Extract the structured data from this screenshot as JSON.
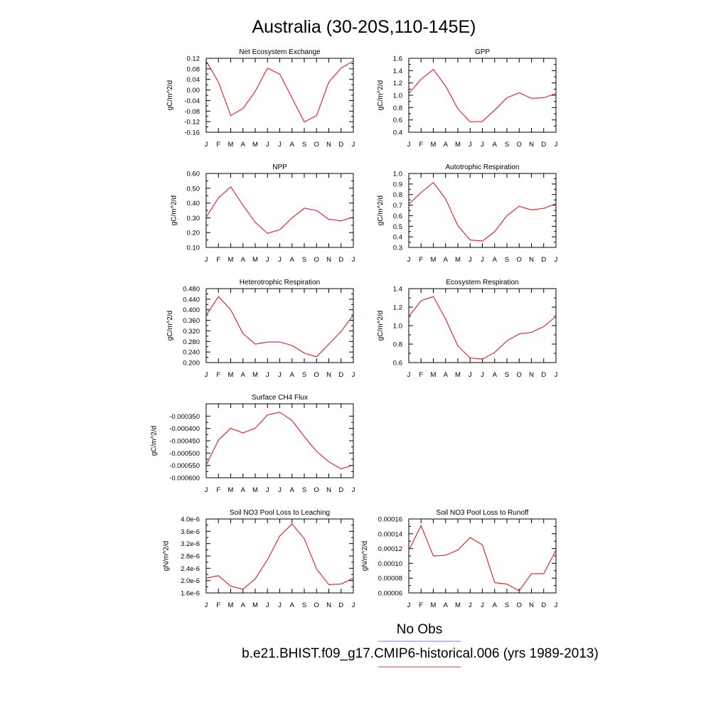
{
  "figure_title": "Australia (30-20S,110-145E)",
  "legend": {
    "entries": [
      {
        "label": "No Obs",
        "color": "#7b7bea"
      },
      {
        "label": "b.e21.BHIST.f09_g17.CMIP6-historical.006 (yrs 1989-2013)",
        "color": "#ef3b3b"
      }
    ]
  },
  "series_color": "#e8191e",
  "chart_data": [
    {
      "type": "line",
      "title": "Net Ecosystem Exchange",
      "ylabel": "gC/m^2/d",
      "categories": [
        "J",
        "F",
        "M",
        "A",
        "M",
        "J",
        "J",
        "A",
        "S",
        "O",
        "N",
        "D",
        "J"
      ],
      "ylim": [
        -0.16,
        0.12
      ],
      "yticks": [
        -0.16,
        -0.12,
        -0.08,
        -0.04,
        0.0,
        0.04,
        0.08,
        0.12
      ],
      "ytick_labels": [
        "-0.16",
        "-0.12",
        "-0.08",
        "-0.04",
        "0.00",
        "0.04",
        "0.08",
        "0.12"
      ],
      "values": [
        0.11,
        0.03,
        -0.097,
        -0.07,
        -0.005,
        0.083,
        0.06,
        -0.03,
        -0.121,
        -0.097,
        0.03,
        0.083,
        0.11
      ]
    },
    {
      "type": "line",
      "title": "GPP",
      "ylabel": "gC/m^2/d",
      "categories": [
        "J",
        "F",
        "M",
        "A",
        "M",
        "J",
        "J",
        "A",
        "S",
        "O",
        "N",
        "D",
        "J"
      ],
      "ylim": [
        0.4,
        1.6
      ],
      "yticks": [
        0.4,
        0.6,
        0.8,
        1.0,
        1.2,
        1.4,
        1.6
      ],
      "ytick_labels": [
        "0.4",
        "0.6",
        "0.8",
        "1.0",
        "1.2",
        "1.4",
        "1.6"
      ],
      "values": [
        1.03,
        1.26,
        1.42,
        1.15,
        0.78,
        0.57,
        0.575,
        0.76,
        0.96,
        1.04,
        0.95,
        0.96,
        1.03
      ]
    },
    {
      "type": "line",
      "title": "NPP",
      "ylabel": "gC/m^2/d",
      "categories": [
        "J",
        "F",
        "M",
        "A",
        "M",
        "J",
        "J",
        "A",
        "S",
        "O",
        "N",
        "D",
        "J"
      ],
      "ylim": [
        0.1,
        0.6
      ],
      "yticks": [
        0.1,
        0.2,
        0.3,
        0.4,
        0.5,
        0.6
      ],
      "ytick_labels": [
        "0.10",
        "0.20",
        "0.30",
        "0.40",
        "0.50",
        "0.60"
      ],
      "values": [
        0.305,
        0.435,
        0.51,
        0.385,
        0.27,
        0.195,
        0.22,
        0.3,
        0.365,
        0.35,
        0.29,
        0.28,
        0.305
      ]
    },
    {
      "type": "line",
      "title": "Autotrophic Respiration",
      "ylabel": "gC/m^2/d",
      "categories": [
        "J",
        "F",
        "M",
        "A",
        "M",
        "J",
        "J",
        "A",
        "S",
        "O",
        "N",
        "D",
        "J"
      ],
      "ylim": [
        0.3,
        1.0
      ],
      "yticks": [
        0.3,
        0.4,
        0.5,
        0.6,
        0.7,
        0.8,
        0.9,
        1.0
      ],
      "ytick_labels": [
        "0.3",
        "0.4",
        "0.5",
        "0.6",
        "0.7",
        "0.8",
        "0.9",
        "1.0"
      ],
      "values": [
        0.71,
        0.82,
        0.915,
        0.76,
        0.505,
        0.37,
        0.36,
        0.45,
        0.6,
        0.69,
        0.655,
        0.67,
        0.715
      ]
    },
    {
      "type": "line",
      "title": "Heterotrophic Respiration",
      "ylabel": "gC/m^2/d",
      "categories": [
        "J",
        "F",
        "M",
        "A",
        "M",
        "J",
        "J",
        "A",
        "S",
        "O",
        "N",
        "D",
        "J"
      ],
      "ylim": [
        0.2,
        0.48
      ],
      "yticks": [
        0.2,
        0.24,
        0.28,
        0.32,
        0.36,
        0.4,
        0.44,
        0.48
      ],
      "ytick_labels": [
        "0.200",
        "0.240",
        "0.280",
        "0.320",
        "0.360",
        "0.400",
        "0.440",
        "0.480"
      ],
      "values": [
        0.38,
        0.45,
        0.4,
        0.31,
        0.27,
        0.278,
        0.278,
        0.265,
        0.236,
        0.222,
        0.27,
        0.318,
        0.38
      ]
    },
    {
      "type": "line",
      "title": "Ecosystem Respiration",
      "ylabel": "gC/m^2/d",
      "categories": [
        "J",
        "F",
        "M",
        "A",
        "M",
        "J",
        "J",
        "A",
        "S",
        "O",
        "N",
        "D",
        "J"
      ],
      "ylim": [
        0.6,
        1.4
      ],
      "yticks": [
        0.6,
        0.8,
        1.0,
        1.2,
        1.4
      ],
      "ytick_labels": [
        "0.6",
        "0.8",
        "1.0",
        "1.2",
        "1.4"
      ],
      "values": [
        1.1,
        1.27,
        1.315,
        1.07,
        0.78,
        0.65,
        0.638,
        0.71,
        0.835,
        0.91,
        0.928,
        0.99,
        1.1
      ]
    },
    {
      "type": "line",
      "title": "Surface CH4 Flux",
      "ylabel": "gC/m^2/d",
      "categories": [
        "J",
        "F",
        "M",
        "A",
        "M",
        "J",
        "J",
        "A",
        "S",
        "O",
        "N",
        "D",
        "J"
      ],
      "ylim": [
        -0.0006,
        -0.0003
      ],
      "yticks": [
        -0.0006,
        -0.00055,
        -0.0005,
        -0.00045,
        -0.0004,
        -0.00035
      ],
      "ytick_labels": [
        "-0.000600",
        "-0.000550",
        "-0.000500",
        "-0.000450",
        "-0.000400",
        "-0.000350"
      ],
      "values": [
        -0.000548,
        -0.000447,
        -0.000399,
        -0.000418,
        -0.000399,
        -0.000345,
        -0.000334,
        -0.000368,
        -0.000433,
        -0.000493,
        -0.000535,
        -0.000564,
        -0.000548
      ]
    },
    {
      "type": "line",
      "title": "Soil NO3 Pool Loss to Leaching",
      "ylabel": "gN/m^2/d",
      "categories": [
        "J",
        "F",
        "M",
        "A",
        "M",
        "J",
        "J",
        "A",
        "S",
        "O",
        "N",
        "D",
        "J"
      ],
      "ylim": [
        1.6e-06,
        4e-06
      ],
      "yticks": [
        1.6e-06,
        2e-06,
        2.4e-06,
        2.8e-06,
        3.2e-06,
        3.6e-06,
        4e-06
      ],
      "ytick_labels": [
        "1.6e-6",
        "2.0e-6",
        "2.4e-6",
        "2.8e-6",
        "3.2e-6",
        "3.6e-6",
        "4.0e-6"
      ],
      "values": [
        2.08e-06,
        2.16e-06,
        1.82e-06,
        1.72e-06,
        2.06e-06,
        2.68e-06,
        3.45e-06,
        3.84e-06,
        3.36e-06,
        2.38e-06,
        1.87e-06,
        1.89e-06,
        2.08e-06
      ]
    },
    {
      "type": "line",
      "title": "Soil NO3 Pool Loss to Runoff",
      "ylabel": "gN/m^2/d",
      "categories": [
        "J",
        "F",
        "M",
        "A",
        "M",
        "J",
        "J",
        "A",
        "S",
        "O",
        "N",
        "D",
        "J"
      ],
      "ylim": [
        6e-05,
        0.00016
      ],
      "yticks": [
        6e-05,
        8e-05,
        0.0001,
        0.00012,
        0.00014,
        0.00016
      ],
      "ytick_labels": [
        "0.00006",
        "0.00008",
        "0.00010",
        "0.00012",
        "0.00014",
        "0.00016"
      ],
      "values": [
        0.000118,
        0.000151,
        0.00011,
        0.000111,
        0.000118,
        0.000135,
        0.000125,
        7.4e-05,
        7.2e-05,
        6.3e-05,
        8.6e-05,
        8.6e-05,
        0.000118
      ]
    }
  ]
}
